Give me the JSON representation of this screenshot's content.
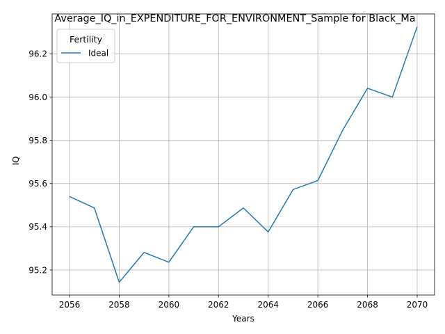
{
  "chart_data": {
    "type": "line",
    "title": "Average_IQ_in_EXPENDITURE_FOR_ENVIRONMENT_Sample for Black_Ma",
    "xlabel": "Years",
    "ylabel": "IQ",
    "x": [
      2056,
      2057,
      2058,
      2059,
      2060,
      2061,
      2062,
      2063,
      2064,
      2065,
      2066,
      2067,
      2068,
      2069,
      2070
    ],
    "series": [
      {
        "name": "Ideal",
        "color": "#1f77b4",
        "values": [
          95.54,
          95.487,
          95.143,
          95.281,
          95.236,
          95.4,
          95.4,
          95.487,
          95.376,
          95.572,
          95.614,
          95.847,
          96.041,
          96.0,
          96.326
        ]
      }
    ],
    "xticks": [
      2056,
      2058,
      2060,
      2062,
      2064,
      2066,
      2068,
      2070
    ],
    "yticks": [
      "95.2",
      "95.4",
      "95.6",
      "95.8",
      "96.0",
      "96.2"
    ],
    "xlim": [
      2055.3,
      2070.7
    ],
    "ylim": [
      95.084,
      96.385
    ],
    "grid": true,
    "legend": {
      "title": "Fertility",
      "placement": "upper-left"
    }
  }
}
